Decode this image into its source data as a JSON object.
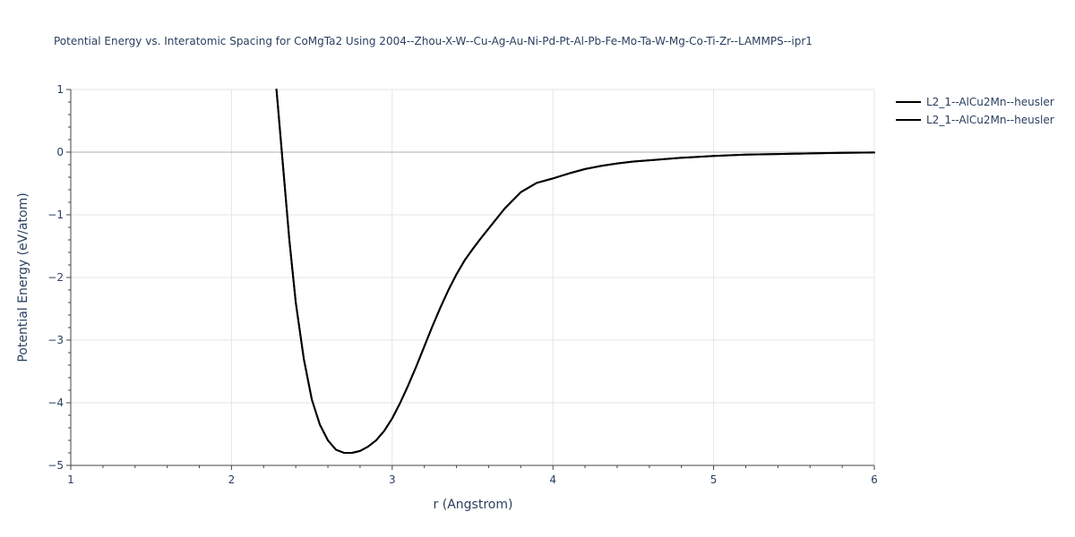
{
  "chart_data": {
    "type": "line",
    "title": "Potential Energy vs. Interatomic Spacing for CoMgTa2 Using 2004--Zhou-X-W--Cu-Ag-Au-Ni-Pd-Pt-Al-Pb-Fe-Mo-Ta-W-Mg-Co-Ti-Zr--LAMMPS--ipr1",
    "xlabel": "r (Angstrom)",
    "ylabel": "Potential Energy (eV/atom)",
    "xlim": [
      1,
      6
    ],
    "ylim": [
      -5,
      1
    ],
    "x_ticks": [
      1,
      2,
      3,
      4,
      5,
      6
    ],
    "y_ticks": [
      -5,
      -4,
      -3,
      -2,
      -1,
      0,
      1
    ],
    "x_tick_labels": [
      "1",
      "2",
      "3",
      "4",
      "5",
      "6"
    ],
    "y_tick_labels": [
      "−5",
      "−4",
      "−3",
      "−2",
      "−1",
      "0",
      "1"
    ],
    "grid": true,
    "legend_position": "top-right",
    "line_color": "#000000",
    "series": [
      {
        "name": "L2_1--AlCu2Mn--heusler",
        "x": [
          2.28,
          2.3,
          2.33,
          2.36,
          2.4,
          2.45,
          2.5,
          2.55,
          2.6,
          2.65,
          2.7,
          2.75,
          2.8,
          2.85,
          2.9,
          2.95,
          3.0,
          3.05,
          3.1,
          3.15,
          3.2,
          3.25,
          3.3,
          3.35,
          3.4,
          3.45,
          3.5,
          3.55,
          3.6,
          3.7,
          3.8,
          3.9,
          4.0,
          4.05,
          4.1,
          4.2,
          4.3,
          4.4,
          4.5,
          4.6,
          4.8,
          5.0,
          5.2,
          5.4,
          5.6,
          5.8,
          6.0
        ],
        "y": [
          1.0,
          0.4,
          -0.5,
          -1.4,
          -2.4,
          -3.3,
          -3.95,
          -4.35,
          -4.6,
          -4.75,
          -4.8,
          -4.8,
          -4.77,
          -4.7,
          -4.6,
          -4.45,
          -4.25,
          -4.0,
          -3.72,
          -3.42,
          -3.1,
          -2.78,
          -2.48,
          -2.2,
          -1.95,
          -1.73,
          -1.55,
          -1.38,
          -1.22,
          -0.9,
          -0.64,
          -0.49,
          -0.42,
          -0.38,
          -0.34,
          -0.27,
          -0.22,
          -0.18,
          -0.15,
          -0.13,
          -0.09,
          -0.06,
          -0.04,
          -0.03,
          -0.02,
          -0.01,
          -0.005
        ]
      },
      {
        "name": "L2_1--AlCu2Mn--heusler",
        "x": [
          2.28,
          2.3,
          2.33,
          2.36,
          2.4,
          2.45,
          2.5,
          2.55,
          2.6,
          2.65,
          2.7,
          2.75,
          2.8,
          2.85,
          2.9,
          2.95,
          3.0,
          3.05,
          3.1,
          3.15,
          3.2,
          3.25,
          3.3,
          3.35,
          3.4,
          3.45,
          3.5,
          3.55,
          3.6,
          3.7,
          3.8,
          3.9,
          4.0,
          4.05,
          4.1,
          4.2,
          4.3,
          4.4,
          4.5,
          4.6,
          4.8,
          5.0,
          5.2,
          5.4,
          5.6,
          5.8,
          6.0
        ],
        "y": [
          1.0,
          0.4,
          -0.5,
          -1.4,
          -2.4,
          -3.3,
          -3.95,
          -4.35,
          -4.6,
          -4.75,
          -4.8,
          -4.8,
          -4.77,
          -4.7,
          -4.6,
          -4.45,
          -4.25,
          -4.0,
          -3.72,
          -3.42,
          -3.1,
          -2.78,
          -2.48,
          -2.2,
          -1.95,
          -1.73,
          -1.55,
          -1.38,
          -1.22,
          -0.9,
          -0.64,
          -0.49,
          -0.42,
          -0.38,
          -0.34,
          -0.27,
          -0.22,
          -0.18,
          -0.15,
          -0.13,
          -0.09,
          -0.06,
          -0.04,
          -0.03,
          -0.02,
          -0.01,
          -0.005
        ]
      }
    ]
  }
}
